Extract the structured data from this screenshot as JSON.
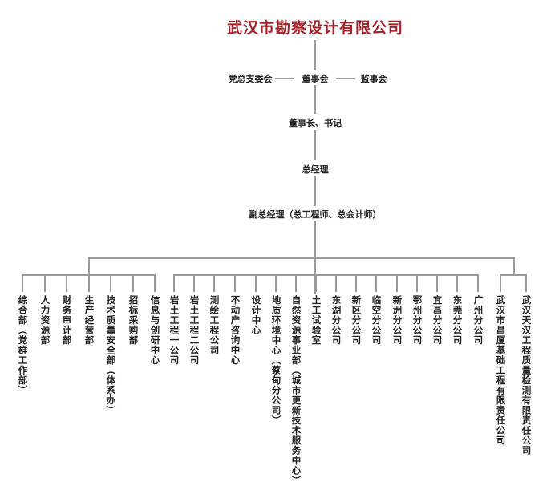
{
  "title": "武汉市勘察设计有限公司",
  "top_row": {
    "left": "党总支委会",
    "center": "董事会",
    "right": "监事会"
  },
  "chairman": "董事长、书记",
  "general_manager": "总经理",
  "deputy": "副总经理（总工程师、总会计师）",
  "departments": [
    "综合部（党群工作部）",
    "人力资源部",
    "财务审计部",
    "生产经营部",
    "技术质量安全部（体系办）",
    "招标采购部",
    "信息与创研中心"
  ],
  "units": [
    "岩土工程一公司",
    "岩土工程二公司",
    "测绘工程公司",
    "不动产咨询中心",
    "设计中心",
    "地质环境中心（蔡甸分公司）",
    "自然资源事业部（城市更新技术服务中心）",
    "土工试验室",
    "东湖分公司",
    "新区分公司",
    "临空分公司",
    "新洲分公司",
    "鄂州分公司",
    "宜昌分公司",
    "东莞分公司",
    "广州分公司"
  ],
  "subsidiaries": [
    "武汉市昌厦基础工程有限责任公司",
    "武汉天汉工程质量检测有限责任公司"
  ],
  "colors": {
    "title": "#a5222a",
    "lines": "#9a9a9a"
  }
}
